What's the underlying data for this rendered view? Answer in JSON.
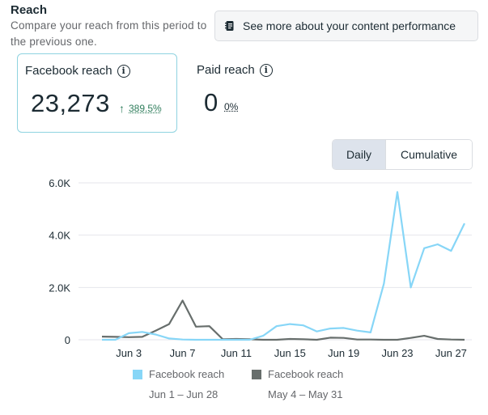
{
  "section": {
    "title": "Reach",
    "subtitle": "Compare your reach from this period to the previous one.",
    "performance_button": "See more about your content performance"
  },
  "metrics": {
    "facebook_reach": {
      "label": "Facebook reach",
      "value": "23,273",
      "delta": "389.5%",
      "delta_arrow": "↑"
    },
    "paid_reach": {
      "label": "Paid reach",
      "value": "0",
      "delta": "0%"
    },
    "info_glyph": "i"
  },
  "toggle": {
    "daily": "Daily",
    "cumulative": "Cumulative",
    "selected": "Daily"
  },
  "colors": {
    "current": "#87d6f7",
    "previous": "#676e6c",
    "grid": "#e4e6eb",
    "accent_border": "#8fd3e0"
  },
  "chart_data": {
    "type": "line",
    "title": "",
    "xlabel": "",
    "ylabel": "",
    "ylim": [
      0,
      6000
    ],
    "yticks": [
      {
        "value": 0,
        "label": "0"
      },
      {
        "value": 2000,
        "label": "2.0K"
      },
      {
        "value": 4000,
        "label": "4.0K"
      },
      {
        "value": 6000,
        "label": "6.0K"
      }
    ],
    "x_count": 28,
    "xticks": [
      {
        "index": 2,
        "label": "Jun 3"
      },
      {
        "index": 6,
        "label": "Jun 7"
      },
      {
        "index": 10,
        "label": "Jun 11"
      },
      {
        "index": 14,
        "label": "Jun 15"
      },
      {
        "index": 18,
        "label": "Jun 19"
      },
      {
        "index": 22,
        "label": "Jun 23"
      },
      {
        "index": 26,
        "label": "Jun 27"
      }
    ],
    "grid": true,
    "series": [
      {
        "name": "Facebook reach",
        "range": "Jun 1 – Jun 28",
        "color": "#87d6f7",
        "values": [
          0,
          0,
          250,
          300,
          200,
          50,
          10,
          0,
          0,
          0,
          0,
          0,
          150,
          520,
          600,
          550,
          320,
          430,
          450,
          350,
          280,
          2150,
          5650,
          2000,
          3500,
          3650,
          3400,
          4450
        ]
      },
      {
        "name": "Facebook reach",
        "range": "May 4 – May 31",
        "color": "#676e6c",
        "values": [
          120,
          110,
          100,
          110,
          350,
          600,
          1500,
          500,
          520,
          20,
          30,
          20,
          0,
          0,
          30,
          20,
          0,
          80,
          70,
          10,
          10,
          0,
          0,
          70,
          150,
          30,
          10,
          0
        ]
      }
    ]
  }
}
